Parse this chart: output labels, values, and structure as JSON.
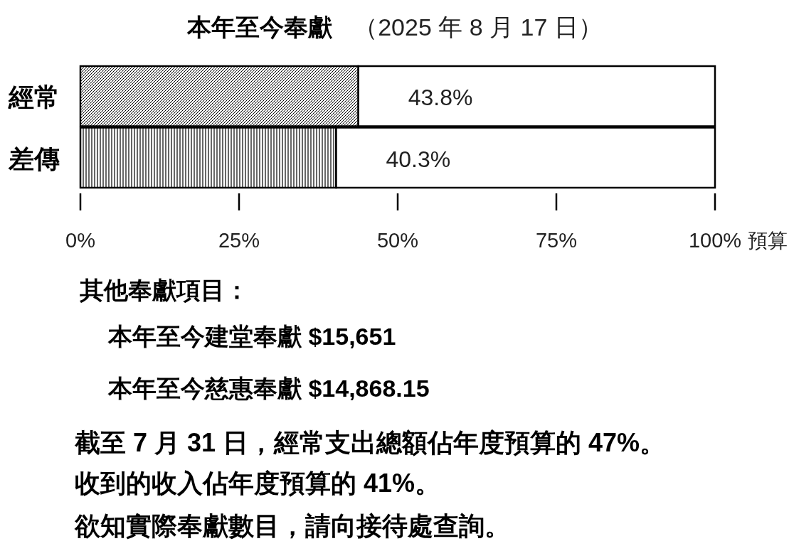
{
  "chart_data": {
    "type": "bar",
    "orientation": "horizontal",
    "stacked": true,
    "title": "本年至今奉獻",
    "subtitle": "（2025 年 8 月 17 日）",
    "xlabel": "預算",
    "categories": [
      "經常",
      "差傳"
    ],
    "series": [
      {
        "color": "#000000",
        "values": [
          43.8,
          40.3
        ],
        "value_labels": [
          "43.8%",
          "40.3%"
        ]
      },
      {
        "color": "#ffffff",
        "values": [
          56.2,
          59.7
        ]
      }
    ],
    "xlim": [
      0,
      100
    ],
    "xticks": [
      {
        "value": 0,
        "label": "0%"
      },
      {
        "value": 25,
        "label": "25%"
      },
      {
        "value": 50,
        "label": "50%"
      },
      {
        "value": 75,
        "label": "75%"
      },
      {
        "value": 100,
        "label": "100%"
      }
    ],
    "grid": false,
    "annotations": [
      "其他奉獻項目：",
      "本年至今建堂奉獻 $15,651",
      "本年至今慈惠奉獻 $14,868.15",
      "截至 7 月 31 日，經常支出總額佔年度預算的 47%。",
      "收到的收入佔年度預算的 41%。",
      "欲知實際奉獻數目，請向接待處查詢。"
    ]
  }
}
